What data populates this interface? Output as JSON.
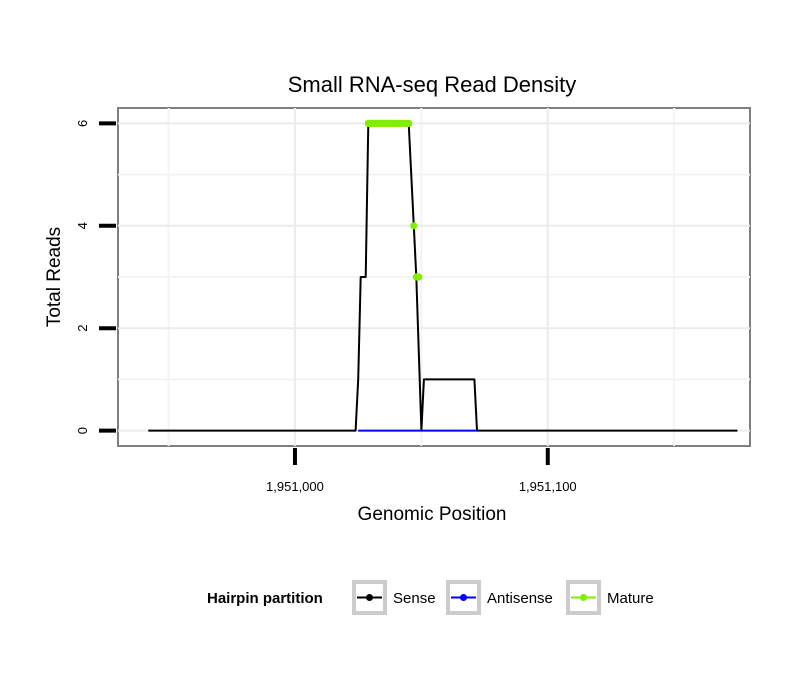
{
  "chart_data": {
    "type": "line",
    "title": "Small RNA-seq Read Density",
    "xlabel": "Genomic Position",
    "ylabel": "Total Reads",
    "xlim": [
      1950930,
      1951180
    ],
    "ylim": [
      -0.3,
      6.3
    ],
    "x_ticks": [
      1951000,
      1951100
    ],
    "x_tick_labels": [
      "1,951,000",
      "1,951,100"
    ],
    "y_ticks": [
      0,
      2,
      4,
      6
    ],
    "y_tick_labels": [
      "0",
      "2",
      "4",
      "6"
    ],
    "grid": true,
    "legend": {
      "title": "Hairpin partition",
      "position": "bottom",
      "entries": [
        {
          "label": "Sense",
          "color": "#000000"
        },
        {
          "label": "Antisense",
          "color": "#0000ff"
        },
        {
          "label": "Mature",
          "color": "#80ee00"
        }
      ]
    },
    "series": [
      {
        "name": "Sense",
        "color": "#000000",
        "markers": false,
        "points": [
          [
            1950942,
            0
          ],
          [
            1951024,
            0
          ],
          [
            1951025,
            1
          ],
          [
            1951026,
            3
          ],
          [
            1951028,
            3
          ],
          [
            1951029,
            6
          ],
          [
            1951045,
            6
          ],
          [
            1951047,
            4
          ],
          [
            1951048,
            3
          ],
          [
            1951050,
            0
          ],
          [
            1951051,
            1
          ],
          [
            1951071,
            1
          ],
          [
            1951072,
            0
          ],
          [
            1951175,
            0
          ]
        ]
      },
      {
        "name": "Antisense",
        "color": "#0000ff",
        "markers": false,
        "points": [
          [
            1951025,
            0
          ],
          [
            1951072,
            0
          ]
        ]
      },
      {
        "name": "Mature",
        "color": "#80ee00",
        "markers": true,
        "points": [
          [
            1951029,
            6
          ],
          [
            1951030,
            6
          ],
          [
            1951031,
            6
          ],
          [
            1951032,
            6
          ],
          [
            1951033,
            6
          ],
          [
            1951034,
            6
          ],
          [
            1951035,
            6
          ],
          [
            1951036,
            6
          ],
          [
            1951037,
            6
          ],
          [
            1951038,
            6
          ],
          [
            1951039,
            6
          ],
          [
            1951040,
            6
          ],
          [
            1951041,
            6
          ],
          [
            1951042,
            6
          ],
          [
            1951043,
            6
          ],
          [
            1951044,
            6
          ],
          [
            1951045,
            6
          ],
          [
            1951047,
            4
          ],
          [
            1951048,
            3
          ],
          [
            1951049,
            3
          ]
        ]
      }
    ]
  }
}
